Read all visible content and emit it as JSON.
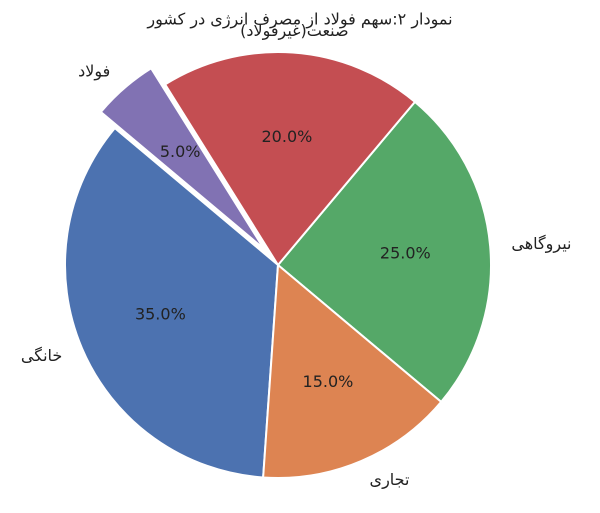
{
  "chart_data": {
    "type": "pie",
    "title": "نمودار ۲:سهم فولاد از مصرف انرژی در کشور",
    "categories": [
      "نیروگاهی",
      "صنعت(غیرفولاد)",
      "فولاد",
      "خانگی",
      "تجاری"
    ],
    "values": [
      25,
      20,
      5,
      35,
      15
    ],
    "value_labels": [
      "25.0%",
      "20.0%",
      "5.0%",
      "35.0%",
      "15.0%"
    ],
    "colors": [
      "#55a868",
      "#c44e52",
      "#8172b3",
      "#4c72b0",
      "#dd8452"
    ],
    "explode": [
      0,
      0,
      0.1,
      0,
      0
    ],
    "startangle": -40
  }
}
